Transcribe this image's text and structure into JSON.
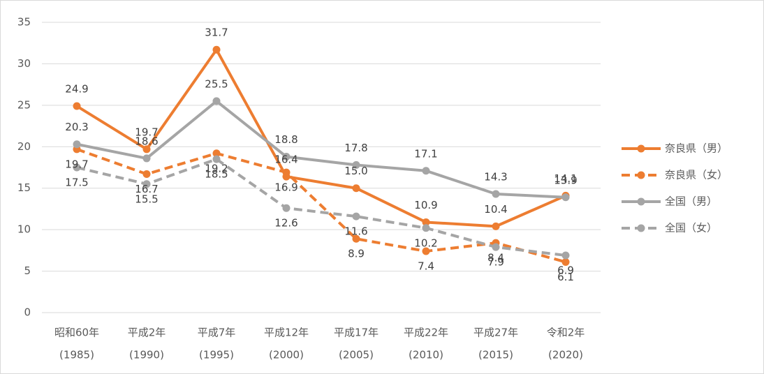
{
  "chart_data": {
    "type": "line",
    "categories": [
      [
        "昭和60年",
        "(1985)"
      ],
      [
        "平成2年",
        "(1990)"
      ],
      [
        "平成7年",
        "(1995)"
      ],
      [
        "平成12年",
        "(2000)"
      ],
      [
        "平成17年",
        "(2005)"
      ],
      [
        "平成22年",
        "(2010)"
      ],
      [
        "平成27年",
        "(2015)"
      ],
      [
        "令和2年",
        "(2020)"
      ]
    ],
    "series": [
      {
        "name": "奈良県（男）",
        "color": "#ed7d31",
        "dash": false,
        "values": [
          24.9,
          19.7,
          31.7,
          16.4,
          15.0,
          10.9,
          10.4,
          14.1
        ],
        "value_labels": [
          "24.9",
          "19.7",
          "31.7",
          "16.4",
          "15.0",
          "10.9",
          "10.4",
          "14.1"
        ]
      },
      {
        "name": "奈良県（女）",
        "color": "#ed7d31",
        "dash": true,
        "values": [
          19.7,
          16.7,
          19.2,
          16.9,
          8.9,
          7.4,
          8.4,
          6.1
        ],
        "value_labels": [
          "19.7",
          "16.7",
          "19.2",
          "16.9",
          "8.9",
          "7.4",
          "8.4",
          "6.1"
        ]
      },
      {
        "name": "全国（男）",
        "color": "#a5a5a5",
        "dash": false,
        "values": [
          20.3,
          18.6,
          25.5,
          18.8,
          17.8,
          17.1,
          14.3,
          13.9
        ],
        "value_labels": [
          "20.3",
          "18.6",
          "25.5",
          "18.8",
          "17.8",
          "17.1",
          "14.3",
          "13.9"
        ]
      },
      {
        "name": "全国（女）",
        "color": "#a5a5a5",
        "dash": true,
        "values": [
          17.5,
          15.5,
          18.5,
          12.6,
          11.6,
          10.2,
          7.9,
          6.9
        ],
        "value_labels": [
          "17.5",
          "15.5",
          "18.5",
          "12.6",
          "11.6",
          "10.2",
          "7.9",
          "6.9"
        ]
      }
    ],
    "ylim": [
      0,
      35
    ],
    "yticks": [
      0,
      5,
      10,
      15,
      20,
      25,
      30,
      35
    ],
    "grid": true,
    "legend": "right"
  }
}
